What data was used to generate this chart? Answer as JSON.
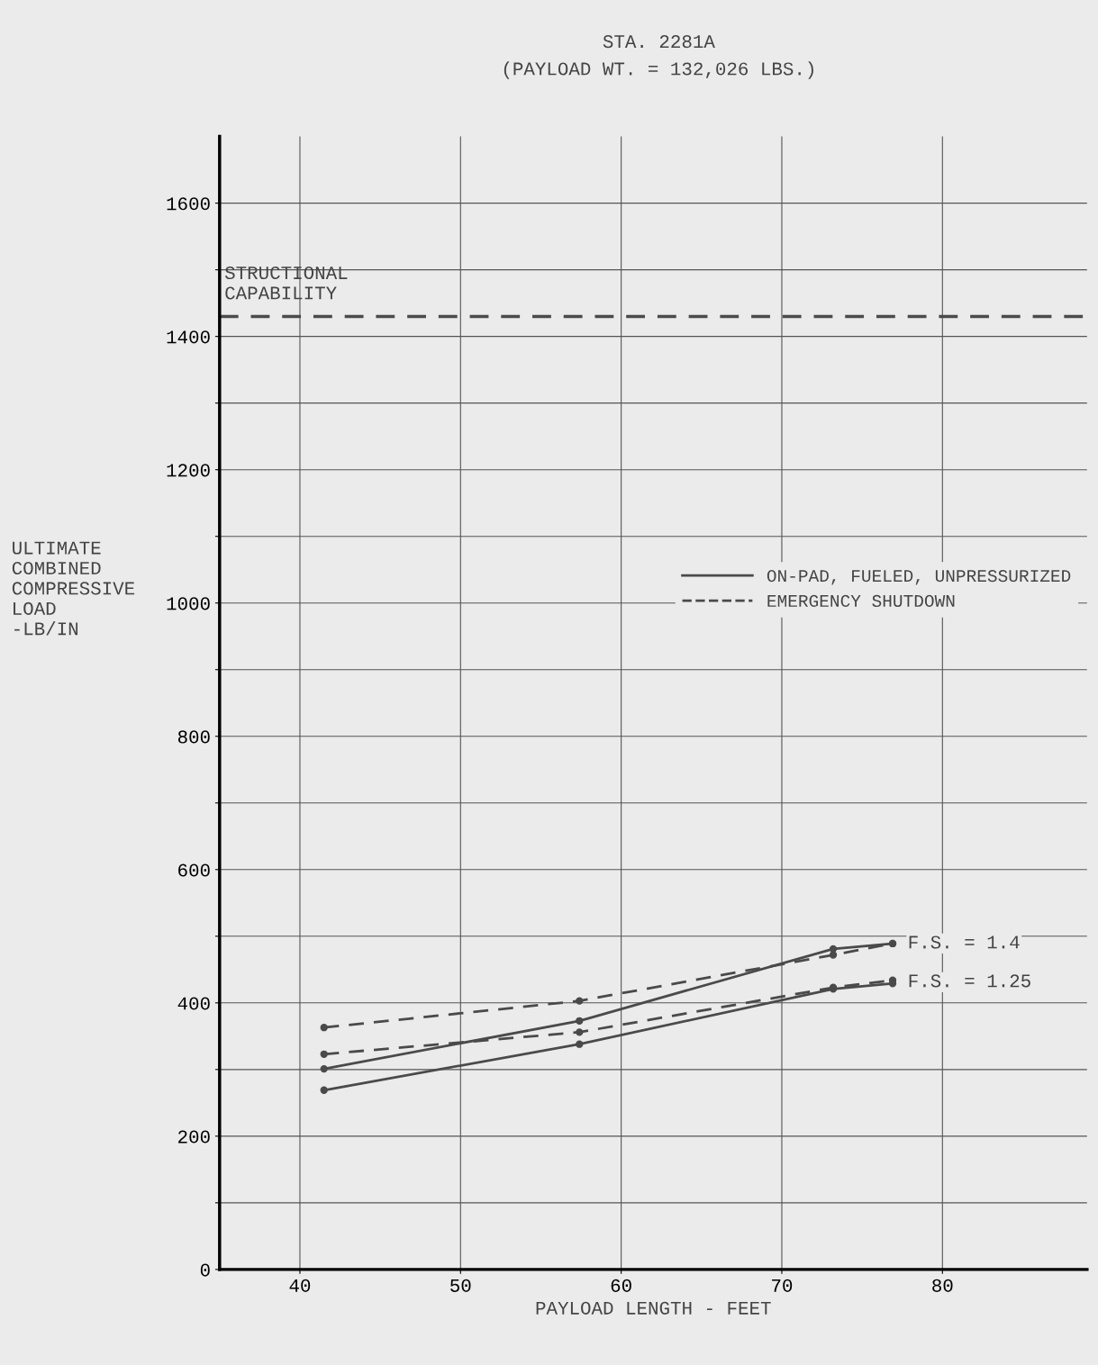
{
  "chart_data": {
    "type": "line",
    "title": "STA. 2281A",
    "subtitle": "(PAYLOAD WT. = 132,026 LBS.)",
    "xlabel": "PAYLOAD LENGTH - FEET",
    "ylabel": "ULTIMATE\nCOMBINED\nCOMPRESSIVE\nLOAD\n-LB/IN",
    "series": [
      {
        "name": "ON-PAD, FUELED, UNPRESSURIZED",
        "color": "#4a4a4a",
        "line_style": "solid",
        "x": [
          41.5,
          57.4,
          73.2,
          76.9
        ],
        "values": [
          301,
          373,
          481,
          489
        ]
      },
      {
        "name": "EMERGENCY SHUTDOWN",
        "color": "#4a4a4a",
        "line_style": "dashed",
        "x": [
          41.5,
          57.4,
          73.2,
          76.9
        ],
        "values": [
          363,
          403,
          472,
          489
        ]
      },
      {
        "color": "#4a4a4a",
        "line_style": "dashed",
        "x": [
          41.5,
          57.4,
          73.2,
          76.9
        ],
        "values": [
          323,
          356,
          423,
          434
        ]
      },
      {
        "color": "#4a4a4a",
        "line_style": "solid",
        "x": [
          41.5,
          57.4,
          73.2,
          76.9
        ],
        "values": [
          269,
          338,
          421,
          429
        ]
      }
    ],
    "marker": "circle",
    "annotations": [
      {
        "text": "F.S. = 1.4",
        "x": 76.9,
        "y": 489
      },
      {
        "text": "F.S. = 1.25",
        "x": 76.9,
        "y": 431
      }
    ],
    "ref_lines": [
      {
        "axis": "y",
        "value": 1430,
        "label": "STRUCTIONAL\nCAPABILITY",
        "color": "#4a4a4a",
        "line_style": "dashed"
      }
    ],
    "xlim": [
      35,
      89
    ],
    "xticks": [
      40,
      50,
      60,
      70,
      80
    ],
    "ylim": [
      0,
      1700
    ],
    "yticks": [
      0,
      {
        "value": 100,
        "label": null
      },
      200,
      {
        "value": 300,
        "label": null
      },
      400,
      {
        "value": 500,
        "label": null
      },
      600,
      {
        "value": 700,
        "label": null
      },
      800,
      {
        "value": 900,
        "label": null
      },
      1000,
      {
        "value": 1100,
        "label": null
      },
      1200,
      {
        "value": 1300,
        "label": null
      },
      1400,
      {
        "value": 1500,
        "label": null
      },
      1600
    ],
    "grid": true,
    "legend": "right"
  }
}
